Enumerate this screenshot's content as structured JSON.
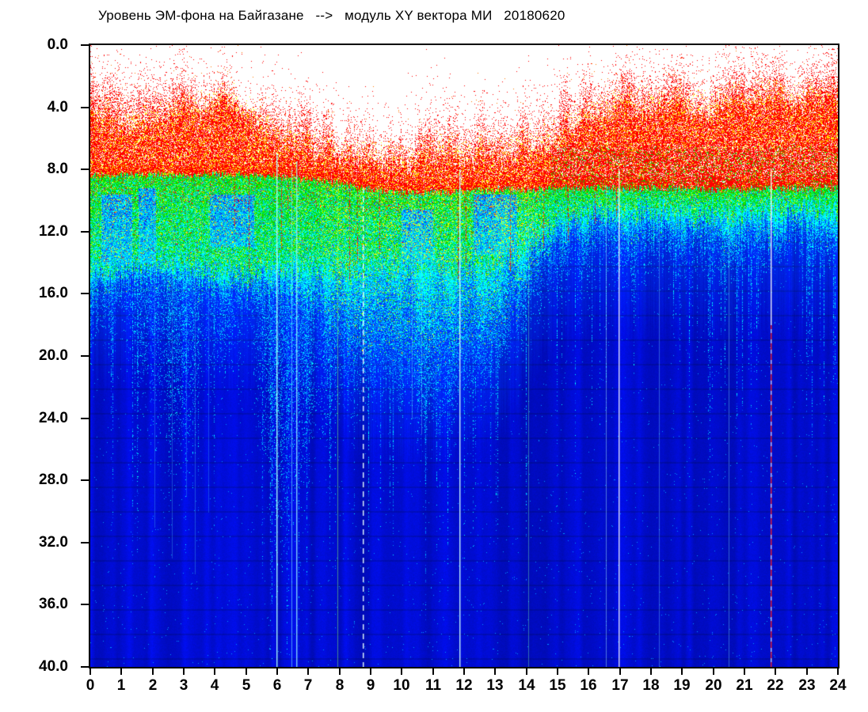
{
  "chart_data": {
    "type": "heatmap",
    "title": "Уровень ЭМ-фона на Байгазане   -->   модуль XY вектора МИ   20180620",
    "xlabel": "",
    "ylabel": "",
    "xlim": [
      0,
      24
    ],
    "ylim": [
      0,
      40
    ],
    "y_axis_inverted": true,
    "grid": false,
    "legend": "none",
    "x_ticks": {
      "values": [
        0,
        1,
        2,
        3,
        4,
        5,
        6,
        7,
        8,
        9,
        10,
        11,
        12,
        13,
        14,
        15,
        16,
        17,
        18,
        19,
        20,
        21,
        22,
        23,
        24
      ],
      "labels": [
        "0",
        "1",
        "2",
        "3",
        "4",
        "5",
        "6",
        "7",
        "8",
        "9",
        "10",
        "11",
        "12",
        "13",
        "14",
        "15",
        "16",
        "17",
        "18",
        "19",
        "20",
        "21",
        "22",
        "23",
        "24"
      ]
    },
    "y_ticks": {
      "values": [
        0,
        4,
        8,
        12,
        16,
        20,
        24,
        28,
        32,
        36,
        40
      ],
      "labels": [
        "0.0",
        "4.0",
        "8.0",
        "12.0",
        "16.0",
        "20.0",
        "24.0",
        "28.0",
        "32.0",
        "36.0",
        "40.0"
      ]
    },
    "palette": {
      "red": "#ff0000",
      "orange": "#ff7800",
      "yellow": "#ffff00",
      "green": "#00d800",
      "green2": "#33ee00",
      "teal": "#00f09a",
      "cyan": "#00ffff",
      "lightblue": "#0096ff",
      "midblue": "#0050ff",
      "blue": "#0028e8",
      "deep": "#000ccd",
      "white": "#ffffff"
    },
    "hours": [
      0,
      1,
      2,
      3,
      4,
      5,
      6,
      7,
      8,
      9,
      10,
      11,
      12,
      13,
      14,
      15,
      16,
      17,
      18,
      19,
      20,
      21,
      22,
      23,
      24
    ],
    "envelopes": {
      "red_top": [
        3.2,
        3.0,
        3.6,
        3.2,
        3.0,
        3.4,
        5.2,
        5.0,
        6.2,
        6.6,
        6.4,
        5.8,
        5.6,
        5.8,
        5.2,
        4.2,
        3.2,
        2.8,
        3.0,
        2.8,
        2.9,
        2.6,
        2.3,
        2.5,
        2.4
      ],
      "dense_red_top": [
        5.2,
        5.6,
        5.4,
        4.8,
        4.0,
        4.2,
        6.9,
        7.1,
        7.5,
        7.7,
        7.8,
        7.6,
        7.5,
        7.5,
        7.2,
        6.4,
        5.0,
        4.4,
        4.6,
        4.4,
        4.6,
        4.2,
        4.0,
        4.2,
        4.2
      ],
      "red_bottom": [
        8.35,
        8.35,
        8.35,
        8.35,
        8.3,
        8.35,
        8.5,
        8.7,
        8.9,
        9.3,
        9.5,
        9.5,
        9.4,
        9.3,
        9.3,
        9.2,
        9.2,
        9.2,
        9.2,
        9.2,
        9.3,
        9.3,
        9.2,
        9.2,
        9.2
      ],
      "green_bottom": [
        14.6,
        14.3,
        13.9,
        14.1,
        14.6,
        14.9,
        14.3,
        14.5,
        14.7,
        14.5,
        14.3,
        14.1,
        14.5,
        14.3,
        12.8,
        11.4,
        10.8,
        10.9,
        10.7,
        10.9,
        11.1,
        10.9,
        10.6,
        10.6,
        10.6
      ],
      "cyan_bottom": [
        16.2,
        15.6,
        15.2,
        15.6,
        16.2,
        16.6,
        16.2,
        17.2,
        19.2,
        20.6,
        20.6,
        21.2,
        20.6,
        19.6,
        16.2,
        13.4,
        12.7,
        12.7,
        12.6,
        12.6,
        13.1,
        12.9,
        12.6,
        12.6,
        12.6
      ],
      "tail_depth": [
        20,
        19,
        27,
        29,
        23,
        21,
        36,
        31,
        25,
        24,
        24,
        27,
        25,
        22,
        20,
        17,
        15,
        16,
        15,
        15,
        16,
        15,
        14,
        14,
        14
      ]
    },
    "yellow_boost_hours": [
      7.4,
      14.6
    ],
    "blue_patches": [
      {
        "x0": 0.35,
        "x1": 1.35,
        "y0": 9.6,
        "y1": 14.2
      },
      {
        "x0": 1.55,
        "x1": 2.1,
        "y0": 9.2,
        "y1": 14.0
      },
      {
        "x0": 3.85,
        "x1": 5.25,
        "y0": 9.6,
        "y1": 13.0
      },
      {
        "x0": 10.0,
        "x1": 11.0,
        "y0": 10.6,
        "y1": 14.0
      },
      {
        "x0": 12.3,
        "x1": 13.7,
        "y0": 9.6,
        "y1": 13.5
      }
    ],
    "artifact_lines": [
      {
        "x": 2.06,
        "y0": 9.0,
        "y1": 31.0,
        "color": "#55e0ff",
        "alpha": 0.3,
        "style": "solid",
        "width": 1
      },
      {
        "x": 2.62,
        "y0": 9.0,
        "y1": 33.0,
        "color": "#55e0ff",
        "alpha": 0.28,
        "style": "solid",
        "width": 1
      },
      {
        "x": 3.08,
        "y0": 9.0,
        "y1": 29.0,
        "color": "#55e0ff",
        "alpha": 0.26,
        "style": "solid",
        "width": 1
      },
      {
        "x": 3.36,
        "y0": 9.0,
        "y1": 34.0,
        "color": "#55e0ff",
        "alpha": 0.3,
        "style": "solid",
        "width": 1
      },
      {
        "x": 3.78,
        "y0": 9.0,
        "y1": 30.0,
        "color": "#55e0ff",
        "alpha": 0.26,
        "style": "solid",
        "width": 1
      },
      {
        "x": 5.98,
        "y0": 7.0,
        "y1": 40.0,
        "color": "#aaffff",
        "alpha": 0.92,
        "style": "solid",
        "width": 2
      },
      {
        "x": 6.45,
        "y0": 8.0,
        "y1": 40.0,
        "color": "#77f2ff",
        "alpha": 0.6,
        "style": "solid",
        "width": 1
      },
      {
        "x": 6.6,
        "y0": 7.5,
        "y1": 40.0,
        "color": "#99f6ff",
        "alpha": 0.8,
        "style": "solid",
        "width": 2
      },
      {
        "x": 7.93,
        "y0": 8.5,
        "y1": 40.0,
        "color": "#88ff66",
        "alpha": 0.5,
        "style": "solid",
        "width": 1
      },
      {
        "x": 8.74,
        "y0": 9.0,
        "y1": 40.0,
        "color": "#eaffff",
        "alpha": 0.95,
        "style": "dashed",
        "width": 2
      },
      {
        "x": 10.32,
        "y0": 10.0,
        "y1": 24.0,
        "color": "#66e8ff",
        "alpha": 0.4,
        "style": "solid",
        "width": 1
      },
      {
        "x": 10.62,
        "y0": 10.0,
        "y1": 25.0,
        "color": "#66e8ff",
        "alpha": 0.35,
        "style": "solid",
        "width": 1
      },
      {
        "x": 11.86,
        "y0": 8.0,
        "y1": 40.0,
        "color": "#ccffff",
        "alpha": 0.9,
        "style": "solid",
        "width": 2
      },
      {
        "x": 14.05,
        "y0": 9.0,
        "y1": 40.0,
        "color": "#7dffb0",
        "alpha": 0.4,
        "style": "solid",
        "width": 1
      },
      {
        "x": 16.55,
        "y0": 9.0,
        "y1": 40.0,
        "color": "#aef4ff",
        "alpha": 0.45,
        "style": "solid",
        "width": 1
      },
      {
        "x": 16.96,
        "y0": 8.0,
        "y1": 40.0,
        "color": "#ffffff",
        "alpha": 0.85,
        "style": "solid",
        "width": 2
      },
      {
        "x": 18.25,
        "y0": 9.5,
        "y1": 40.0,
        "color": "#7deaff",
        "alpha": 0.35,
        "style": "solid",
        "width": 1
      },
      {
        "x": 20.5,
        "y0": 9.5,
        "y1": 40.0,
        "color": "#7deaff",
        "alpha": 0.4,
        "style": "solid",
        "width": 1
      },
      {
        "x": 21.84,
        "y0": 8.0,
        "y1": 40.0,
        "color": "#ffffff",
        "alpha": 0.9,
        "style": "dash-red-bottom",
        "width": 2
      }
    ],
    "red_streaks": [
      {
        "x": 4.62,
        "y0": 7.8,
        "y1": 12.0
      },
      {
        "x": 5.08,
        "y0": 7.5,
        "y1": 14.5
      },
      {
        "x": 6.12,
        "y0": 6.0,
        "y1": 13.0
      },
      {
        "x": 6.32,
        "y0": 5.0,
        "y1": 10.5
      },
      {
        "x": 8.32,
        "y0": 7.4,
        "y1": 15.0
      },
      {
        "x": 8.56,
        "y0": 7.6,
        "y1": 14.0
      },
      {
        "x": 9.27,
        "y0": 7.8,
        "y1": 13.5
      },
      {
        "x": 11.8,
        "y0": 7.4,
        "y1": 15.0
      },
      {
        "x": 12.06,
        "y0": 7.8,
        "y1": 14.0
      },
      {
        "x": 13.47,
        "y0": 7.2,
        "y1": 14.5
      },
      {
        "x": 14.55,
        "y0": 6.5,
        "y1": 13.0
      },
      {
        "x": 15.32,
        "y0": 5.5,
        "y1": 12.5
      },
      {
        "x": 16.2,
        "y0": 4.0,
        "y1": 11.5
      },
      {
        "x": 16.88,
        "y0": 3.8,
        "y1": 11.0
      }
    ]
  }
}
